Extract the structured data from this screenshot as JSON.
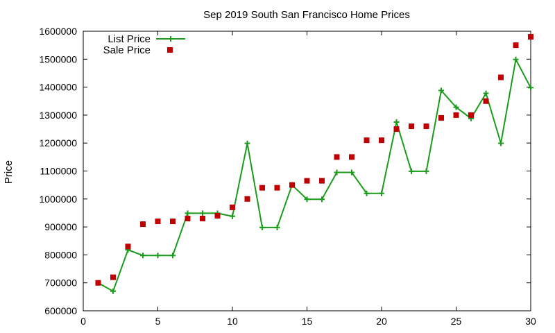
{
  "chart_data": {
    "type": "line",
    "title": "Sep 2019 South San Francisco Home Prices",
    "xlabel": "",
    "ylabel": "Price",
    "xlim": [
      0,
      30
    ],
    "ylim": [
      600000,
      1600000
    ],
    "x_ticks": [
      0,
      5,
      10,
      15,
      20,
      25,
      30
    ],
    "y_ticks": [
      600000,
      700000,
      800000,
      900000,
      1000000,
      1100000,
      1200000,
      1300000,
      1400000,
      1500000,
      1600000
    ],
    "grid": false,
    "legend_position": "top-left",
    "x": [
      1,
      2,
      3,
      4,
      5,
      6,
      7,
      8,
      9,
      10,
      11,
      12,
      13,
      14,
      15,
      16,
      17,
      18,
      19,
      20,
      21,
      22,
      23,
      24,
      25,
      26,
      27,
      28,
      29,
      30
    ],
    "series": [
      {
        "name": "List Price",
        "style": "line-plus",
        "color": "#1a9b1a",
        "values": [
          700000,
          670000,
          818000,
          798000,
          798000,
          798000,
          949000,
          949000,
          949000,
          938000,
          1199000,
          898000,
          898000,
          1050000,
          999000,
          999000,
          1095000,
          1095000,
          1020000,
          1020000,
          1275000,
          1099000,
          1099000,
          1388000,
          1328000,
          1288000,
          1378000,
          1199000,
          1499000,
          1398000
        ]
      },
      {
        "name": "Sale Price",
        "style": "marker-square",
        "color": "#c00000",
        "values": [
          700000,
          720000,
          830000,
          910000,
          920000,
          920000,
          930000,
          930000,
          940000,
          970000,
          1000000,
          1040000,
          1040000,
          1050000,
          1065000,
          1065000,
          1150000,
          1150000,
          1210000,
          1210000,
          1250000,
          1260000,
          1260000,
          1290000,
          1300000,
          1300000,
          1350000,
          1435000,
          1550000,
          1580000
        ]
      }
    ]
  }
}
